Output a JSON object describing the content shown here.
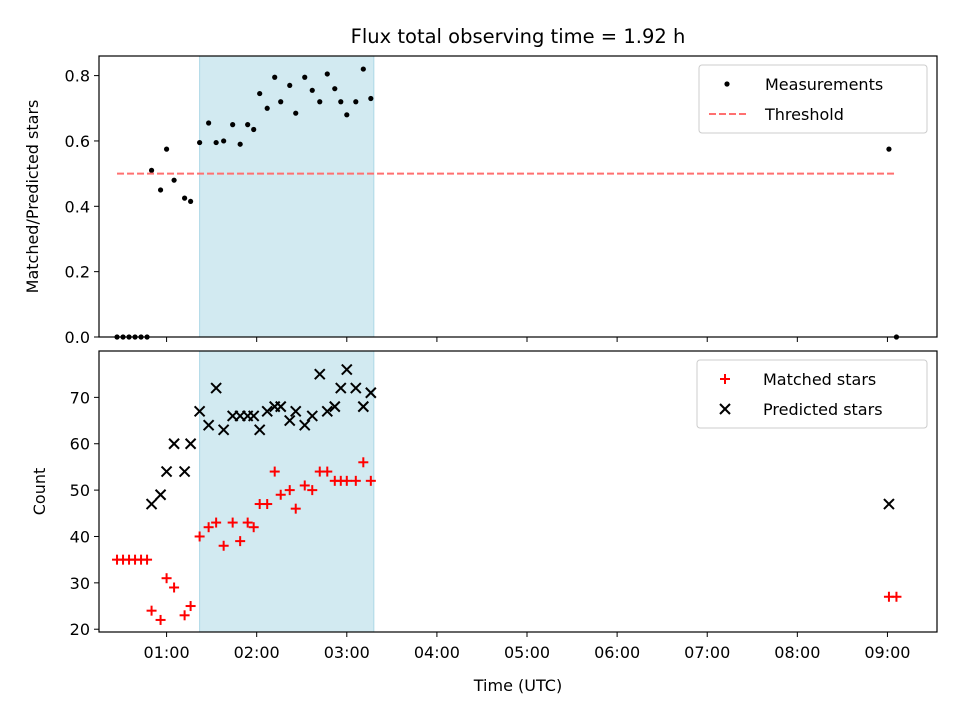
{
  "chart_data": [
    {
      "type": "scatter",
      "title": "Flux total observing time = 1.92 h",
      "xlabel": "",
      "ylabel": "Matched/Predicted stars",
      "xlim": [
        "00:15",
        "09:33"
      ],
      "ylim": [
        0,
        0.86
      ],
      "yticks": [
        0.0,
        0.2,
        0.4,
        0.6,
        0.8
      ],
      "yticklabels": [
        "0.0",
        "0.2",
        "0.4",
        "0.6",
        "0.8"
      ],
      "grid": false,
      "legend_position": "top-right",
      "shaded_interval": {
        "start": "01:22",
        "end": "03:18",
        "color": "#add8e6"
      },
      "series": [
        {
          "name": "Measurements",
          "marker": "dot",
          "color": "#000000",
          "points": [
            [
              "00:27",
              0.0
            ],
            [
              "00:31",
              0.0
            ],
            [
              "00:35",
              0.0
            ],
            [
              "00:39",
              0.0
            ],
            [
              "00:43",
              0.0
            ],
            [
              "00:47",
              0.0
            ],
            [
              "00:50",
              0.51
            ],
            [
              "00:56",
              0.45
            ],
            [
              "01:00",
              0.575
            ],
            [
              "01:05",
              0.48
            ],
            [
              "01:12",
              0.425
            ],
            [
              "01:16",
              0.415
            ],
            [
              "01:22",
              0.595
            ],
            [
              "01:28",
              0.655
            ],
            [
              "01:33",
              0.595
            ],
            [
              "01:38",
              0.6
            ],
            [
              "01:44",
              0.65
            ],
            [
              "01:49",
              0.59
            ],
            [
              "01:54",
              0.65
            ],
            [
              "01:58",
              0.635
            ],
            [
              "02:02",
              0.745
            ],
            [
              "02:07",
              0.7
            ],
            [
              "02:12",
              0.795
            ],
            [
              "02:16",
              0.72
            ],
            [
              "02:22",
              0.77
            ],
            [
              "02:26",
              0.685
            ],
            [
              "02:32",
              0.795
            ],
            [
              "02:37",
              0.755
            ],
            [
              "02:42",
              0.72
            ],
            [
              "02:47",
              0.805
            ],
            [
              "02:52",
              0.76
            ],
            [
              "02:56",
              0.72
            ],
            [
              "03:00",
              0.68
            ],
            [
              "03:06",
              0.72
            ],
            [
              "03:11",
              0.82
            ],
            [
              "03:16",
              0.73
            ],
            [
              "09:01",
              0.575
            ],
            [
              "09:06",
              0.0
            ]
          ]
        },
        {
          "name": "Threshold",
          "style": "dashed-line",
          "color": "#ff7070",
          "points": [
            [
              "00:27",
              0.5
            ],
            [
              "09:05",
              0.5
            ]
          ]
        }
      ]
    },
    {
      "type": "scatter",
      "title": "",
      "xlabel": "Time (UTC)",
      "ylabel": "Count",
      "xlim": [
        "00:15",
        "09:33"
      ],
      "ylim": [
        19.4,
        80
      ],
      "yticks": [
        20,
        30,
        40,
        50,
        60,
        70
      ],
      "yticklabels": [
        "20",
        "30",
        "40",
        "50",
        "60",
        "70"
      ],
      "xticks": [
        "01:00",
        "02:00",
        "03:00",
        "04:00",
        "05:00",
        "06:00",
        "07:00",
        "08:00",
        "09:00"
      ],
      "xticklabels": [
        "01:00",
        "02:00",
        "03:00",
        "04:00",
        "05:00",
        "06:00",
        "07:00",
        "08:00",
        "09:00"
      ],
      "grid": false,
      "legend_position": "top-right",
      "shaded_interval": {
        "start": "01:22",
        "end": "03:18",
        "color": "#add8e6"
      },
      "series": [
        {
          "name": "Matched stars",
          "marker": "plus",
          "color": "#ff0000",
          "points": [
            [
              "00:27",
              35
            ],
            [
              "00:31",
              35
            ],
            [
              "00:35",
              35
            ],
            [
              "00:39",
              35
            ],
            [
              "00:43",
              35
            ],
            [
              "00:47",
              35
            ],
            [
              "00:50",
              24
            ],
            [
              "00:56",
              22
            ],
            [
              "01:00",
              31
            ],
            [
              "01:05",
              29
            ],
            [
              "01:12",
              23
            ],
            [
              "01:16",
              25
            ],
            [
              "01:22",
              40
            ],
            [
              "01:28",
              42
            ],
            [
              "01:33",
              43
            ],
            [
              "01:38",
              38
            ],
            [
              "01:44",
              43
            ],
            [
              "01:49",
              39
            ],
            [
              "01:54",
              43
            ],
            [
              "01:58",
              42
            ],
            [
              "02:02",
              47
            ],
            [
              "02:07",
              47
            ],
            [
              "02:12",
              54
            ],
            [
              "02:16",
              49
            ],
            [
              "02:22",
              50
            ],
            [
              "02:26",
              46
            ],
            [
              "02:32",
              51
            ],
            [
              "02:37",
              50
            ],
            [
              "02:42",
              54
            ],
            [
              "02:47",
              54
            ],
            [
              "02:52",
              52
            ],
            [
              "02:56",
              52
            ],
            [
              "03:00",
              52
            ],
            [
              "03:06",
              52
            ],
            [
              "03:11",
              56
            ],
            [
              "03:16",
              52
            ],
            [
              "09:01",
              27
            ],
            [
              "09:06",
              27
            ]
          ]
        },
        {
          "name": "Predicted stars",
          "marker": "x",
          "color": "#000000",
          "points": [
            [
              "00:50",
              47
            ],
            [
              "00:56",
              49
            ],
            [
              "01:00",
              54
            ],
            [
              "01:05",
              60
            ],
            [
              "01:12",
              54
            ],
            [
              "01:16",
              60
            ],
            [
              "01:22",
              67
            ],
            [
              "01:28",
              64
            ],
            [
              "01:33",
              72
            ],
            [
              "01:38",
              63
            ],
            [
              "01:44",
              66
            ],
            [
              "01:49",
              66
            ],
            [
              "01:54",
              66
            ],
            [
              "01:58",
              66
            ],
            [
              "02:02",
              63
            ],
            [
              "02:07",
              67
            ],
            [
              "02:12",
              68
            ],
            [
              "02:16",
              68
            ],
            [
              "02:22",
              65
            ],
            [
              "02:26",
              67
            ],
            [
              "02:32",
              64
            ],
            [
              "02:37",
              66
            ],
            [
              "02:42",
              75
            ],
            [
              "02:47",
              67
            ],
            [
              "02:52",
              68
            ],
            [
              "02:56",
              72
            ],
            [
              "03:00",
              76
            ],
            [
              "03:06",
              72
            ],
            [
              "03:11",
              68
            ],
            [
              "03:16",
              71
            ],
            [
              "09:01",
              47
            ]
          ]
        }
      ]
    }
  ]
}
